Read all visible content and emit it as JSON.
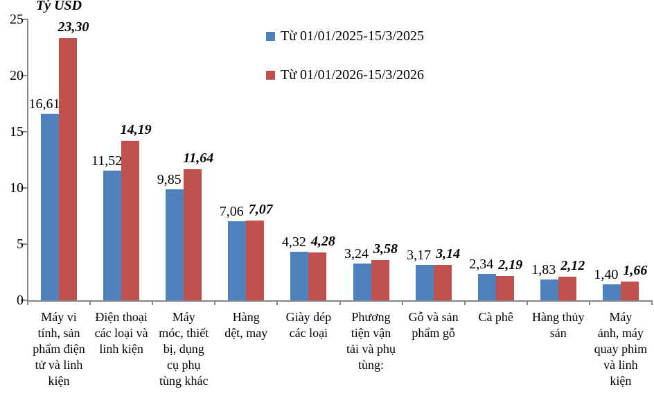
{
  "axis_title": "Tỷ USD",
  "legend": [
    {
      "label": "Từ 01/01/2025-15/3/2025",
      "color": "#4F81BD"
    },
    {
      "label": "Từ 01/01/2026-15/3/2026",
      "color": "#C0504D"
    }
  ],
  "chart_data": {
    "type": "bar",
    "title": "Tỷ USD",
    "ylabel": "Tỷ USD",
    "xlabel": "",
    "ylim": [
      0,
      25
    ],
    "yticks": [
      0,
      5,
      10,
      15,
      20,
      25
    ],
    "ytick_labels": [
      "0",
      "5",
      "10",
      "15",
      "20",
      "25"
    ],
    "grid": false,
    "legend_position": "top-center",
    "background": "#FFFFFF",
    "axis_color": "#868686",
    "categories": [
      "Máy vi tính, sản phẩm điện tử và linh kiện",
      "Điện thoại các loại và linh kiện",
      "Máy móc, thiết bị, dụng cụ phụ tùng khác",
      "Hàng dệt, may",
      "Giày dép các loại",
      "Phương tiện vận tải và phụ tùng:",
      "Gỗ và sản phẩm gỗ",
      "Cà phê",
      "Hàng thủy sản",
      "Máy ảnh, máy quay phim và linh kiện"
    ],
    "categories_display": [
      "Máy vi\ntính, sản\nphẩm điện\ntử và linh\nkiện",
      "Điện thoại\ncác loại và\nlinh kiện",
      "Máy\nmóc, thiết\nbị, dụng\ncụ phụ\ntùng khác",
      "Hàng\ndệt, may",
      "Giày dép\ncác loại",
      "Phương\ntiện vận\ntải và phụ\ntùng:",
      "Gỗ và sản\nphẩm gỗ",
      "Cà phê",
      "Hàng thủy\nsản",
      "Máy\nảnh, máy\nquay phim\nvà linh\nkiện"
    ],
    "series": [
      {
        "name": "Từ 01/01/2025-15/3/2025",
        "color": "#4F81BD",
        "values": [
          16.61,
          11.52,
          9.85,
          7.06,
          4.32,
          3.24,
          3.17,
          2.34,
          1.83,
          1.4
        ],
        "labels": [
          "16,61",
          "11,52",
          "9,85",
          "7,06",
          "4,32",
          "3,24",
          "3,17",
          "2,34",
          "1,83",
          "1,40"
        ],
        "label_style": "plain"
      },
      {
        "name": "Từ 01/01/2026-15/3/2026",
        "color": "#C0504D",
        "values": [
          23.3,
          14.19,
          11.64,
          7.07,
          4.28,
          3.58,
          3.14,
          2.19,
          2.12,
          1.66
        ],
        "labels": [
          "23,30",
          "14,19",
          "11,64",
          "7,07",
          "4,28",
          "3,58",
          "3,14",
          "2,19",
          "2,12",
          "1,66"
        ],
        "label_style": "bold-italic"
      }
    ]
  }
}
